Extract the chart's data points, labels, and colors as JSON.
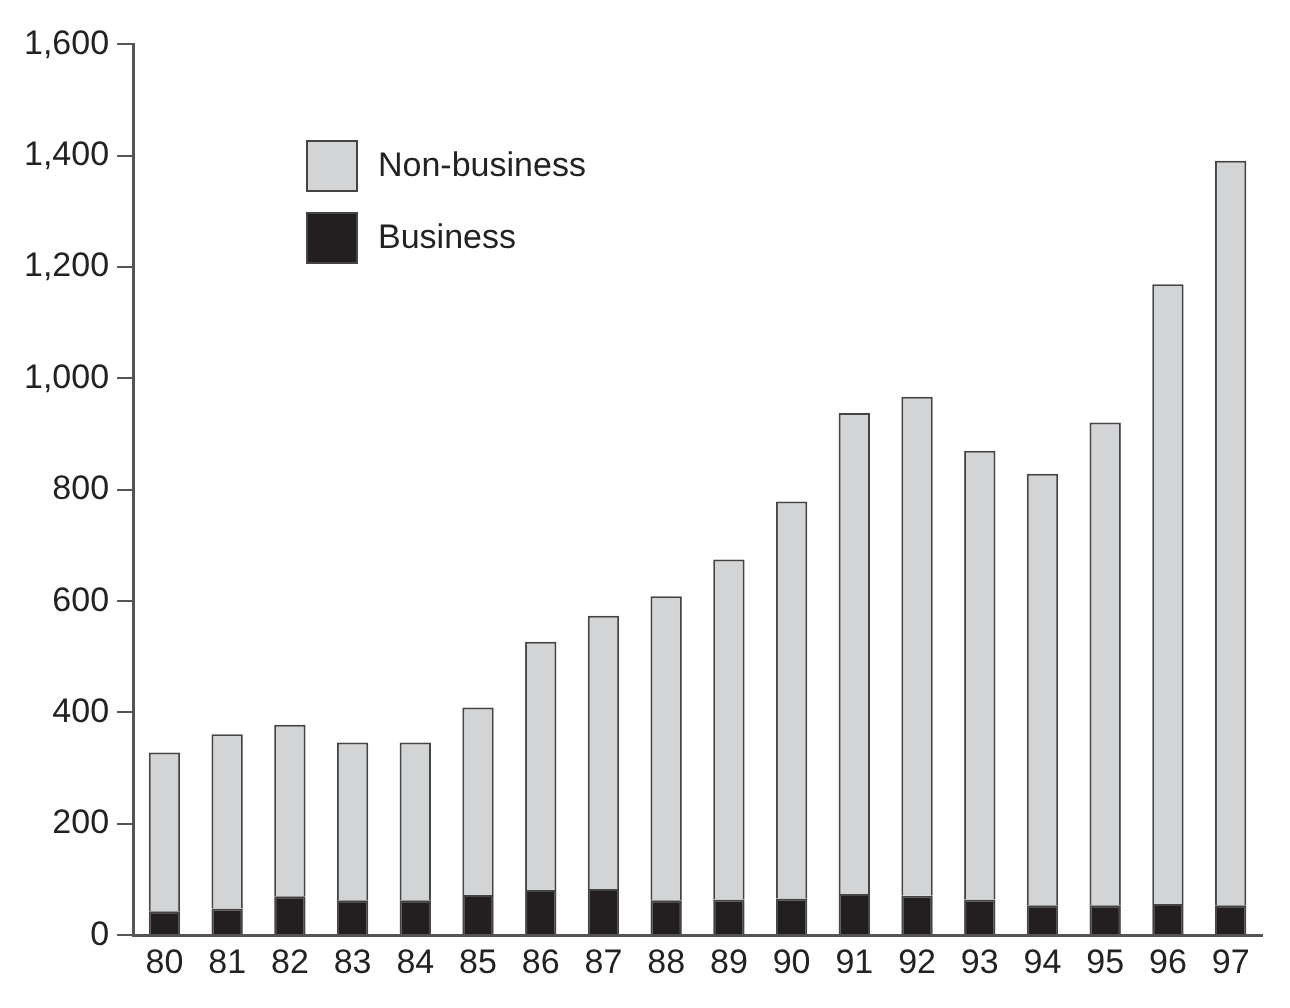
{
  "chart_data": {
    "type": "bar",
    "stacked": true,
    "categories": [
      "80",
      "81",
      "82",
      "83",
      "84",
      "85",
      "86",
      "87",
      "88",
      "89",
      "90",
      "91",
      "92",
      "93",
      "94",
      "95",
      "96",
      "97"
    ],
    "series": [
      {
        "name": "Business",
        "color": "#231f20",
        "values": [
          43,
          48,
          70,
          63,
          63,
          72,
          81,
          83,
          63,
          64,
          66,
          74,
          71,
          64,
          54,
          54,
          56,
          54
        ]
      },
      {
        "name": "Non-business",
        "color": "#d3d4d6",
        "values": [
          285,
          313,
          308,
          283,
          283,
          337,
          446,
          491,
          546,
          611,
          713,
          864,
          896,
          806,
          775,
          867,
          1113,
          1337
        ]
      }
    ],
    "ylim": [
      0,
      1600
    ],
    "yticks": [
      {
        "value": 0,
        "label": "0"
      },
      {
        "value": 200,
        "label": "200"
      },
      {
        "value": 400,
        "label": "400"
      },
      {
        "value": 600,
        "label": "600"
      },
      {
        "value": 800,
        "label": "800"
      },
      {
        "value": 1000,
        "label": "1,000"
      },
      {
        "value": 1200,
        "label": "1,200"
      },
      {
        "value": 1400,
        "label": "1,400"
      },
      {
        "value": 1600,
        "label": "1,600"
      }
    ],
    "grid": false,
    "legend": "top left"
  }
}
